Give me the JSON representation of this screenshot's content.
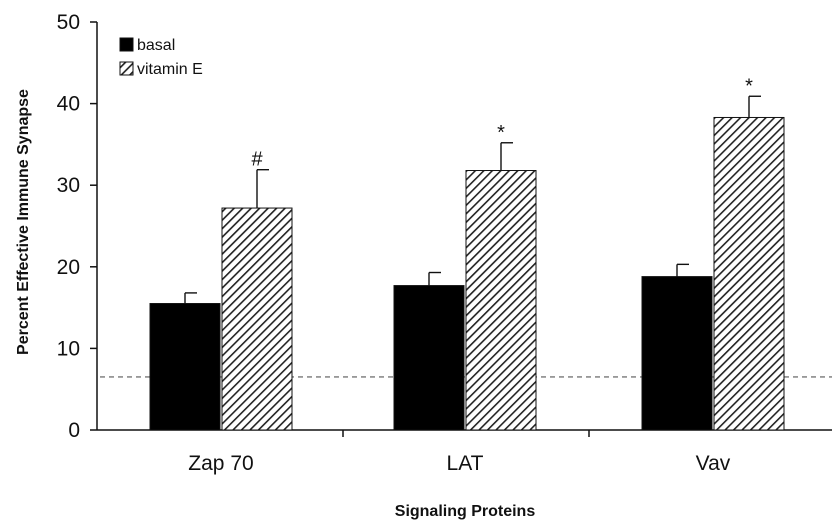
{
  "chart_data": {
    "type": "bar",
    "title": "",
    "xlabel": "Signaling Proteins",
    "ylabel": "Percent Effective Immune Synapse",
    "ylim": [
      0,
      50
    ],
    "yticks": [
      0,
      10,
      20,
      30,
      40,
      50
    ],
    "categories": [
      "Zap 70",
      "LAT",
      "Vav"
    ],
    "series": [
      {
        "name": "basal",
        "values": [
          15.5,
          17.7,
          18.8
        ],
        "errors": [
          1.3,
          1.6,
          1.5
        ],
        "color": "#000000",
        "pattern": "solid"
      },
      {
        "name": "vitamin E",
        "values": [
          27.2,
          31.8,
          38.3
        ],
        "errors": [
          4.7,
          3.4,
          2.6
        ],
        "color": "#555555",
        "pattern": "diagonal-hatch"
      }
    ],
    "annotations": [
      "#",
      "*",
      "*"
    ],
    "reference_line": {
      "y": 6.5,
      "style": "dashed"
    },
    "grid": false,
    "legend_position": "top-left"
  }
}
